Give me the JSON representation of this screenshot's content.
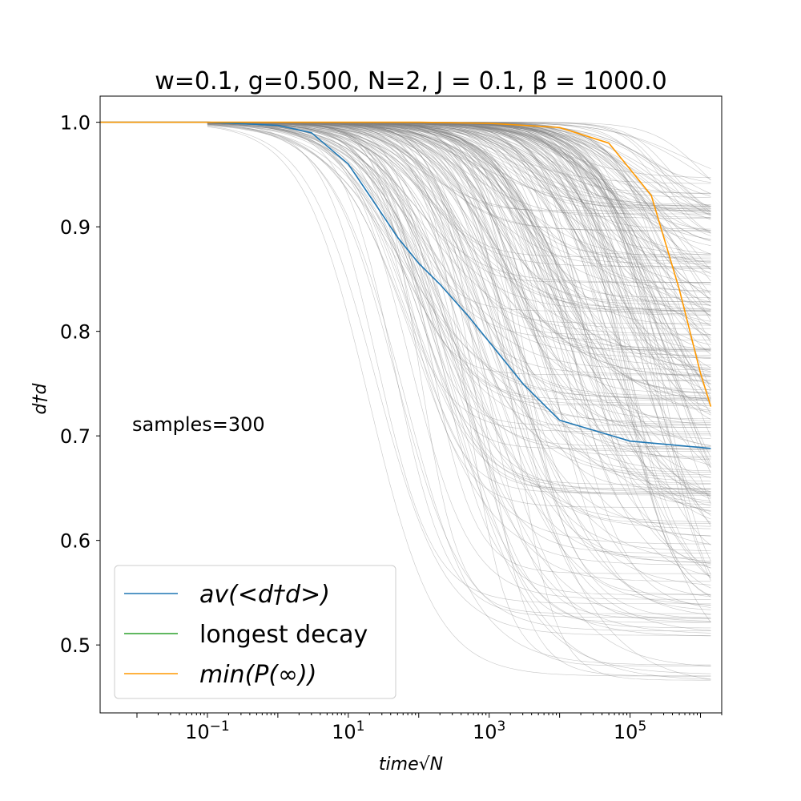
{
  "chart_data": {
    "type": "line",
    "title": "w=0.1, g=0.500, N=2, J = 0.1, β = 1000.0",
    "xlabel": "time√N",
    "ylabel": "d†d",
    "xscale": "log",
    "xlim": [
      0.003,
      2000000
    ],
    "ylim": [
      0.435,
      1.025
    ],
    "x_ticks": [
      {
        "value": 0.1,
        "base": "10",
        "exp": "−1"
      },
      {
        "value": 10,
        "base": "10",
        "exp": "1"
      },
      {
        "value": 1000,
        "base": "10",
        "exp": "3"
      },
      {
        "value": 100000,
        "base": "10",
        "exp": "5"
      }
    ],
    "y_ticks": [
      "0.5",
      "0.6",
      "0.7",
      "0.8",
      "0.9",
      "1.0"
    ],
    "annotation": "samples=300",
    "legend_position": "lower-left",
    "series": [
      {
        "name": "av(<d†d>)",
        "color": "#1f77b4",
        "x": [
          0.003,
          0.1,
          1,
          3,
          10,
          20,
          50,
          100,
          200,
          500,
          1000,
          3000,
          10000,
          100000,
          1400000
        ],
        "y": [
          1.0,
          1.0,
          0.997,
          0.99,
          0.96,
          0.93,
          0.89,
          0.865,
          0.845,
          0.815,
          0.79,
          0.75,
          0.715,
          0.695,
          0.688
        ]
      },
      {
        "name": "longest decay",
        "color": "#2ca02c",
        "x": [],
        "y": []
      },
      {
        "name": "min(P(∞))",
        "color": "#ff9900",
        "x": [
          0.003,
          100,
          1000,
          10000,
          50000,
          200000,
          500000,
          1000000,
          1400000
        ],
        "y": [
          1.0,
          1.0,
          0.999,
          0.995,
          0.98,
          0.93,
          0.84,
          0.76,
          0.728
        ]
      }
    ],
    "background_samples": {
      "count": 300,
      "color": "#808080",
      "x_start": 0.1,
      "x_end": 1400000,
      "final_value_range": [
        0.452,
        0.952
      ]
    }
  }
}
